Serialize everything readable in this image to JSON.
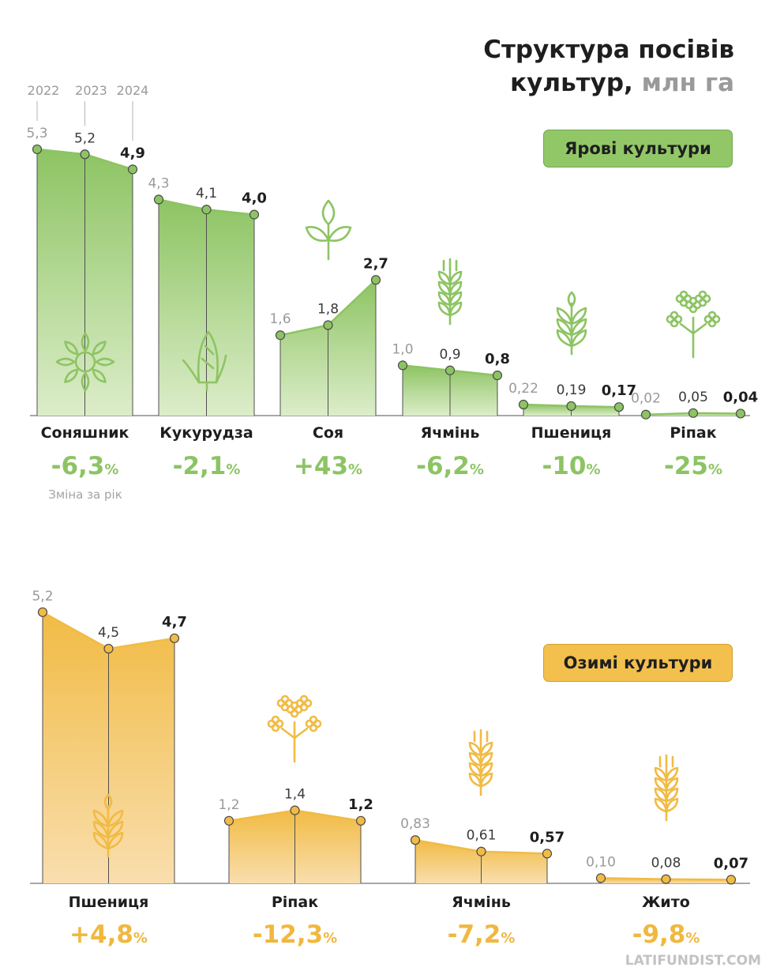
{
  "title": {
    "line1": "Структура посівів",
    "line2": "культур,",
    "unit": "млн га"
  },
  "badges": {
    "spring": "Ярові культури",
    "winter": "Озимі культури"
  },
  "years": [
    "2022",
    "2023",
    "2024"
  ],
  "change_note": "Зміна за рік",
  "watermark": "LATIFUNDIST.COM",
  "colors": {
    "spring": "#8dc463",
    "winter": "#f1bb44",
    "value_current": "#1e1e1e",
    "value_past": "#9a9a9a"
  },
  "chart_data": [
    {
      "type": "area",
      "group": "spring",
      "x": [
        "2022",
        "2023",
        "2024"
      ],
      "series": [
        {
          "name": "Соняшник",
          "values": [
            5.3,
            5.2,
            4.9
          ],
          "labels": [
            "5,3",
            "5,2",
            "4,9"
          ],
          "change": "-6,3",
          "icon": "sunflower-icon"
        },
        {
          "name": "Кукурудза",
          "values": [
            4.3,
            4.1,
            4.0
          ],
          "labels": [
            "4,3",
            "4,1",
            "4,0"
          ],
          "change": "-2,1",
          "icon": "corn-icon"
        },
        {
          "name": "Соя",
          "values": [
            1.6,
            1.8,
            2.7
          ],
          "labels": [
            "1,6",
            "1,8",
            "2,7"
          ],
          "change": "+43",
          "icon": "soy-icon"
        },
        {
          "name": "Ячмінь",
          "values": [
            1.0,
            0.9,
            0.8
          ],
          "labels": [
            "1,0",
            "0,9",
            "0,8"
          ],
          "change": "-6,2",
          "icon": "barley-icon"
        },
        {
          "name": "Пшениця",
          "values": [
            0.22,
            0.19,
            0.17
          ],
          "labels": [
            "0,22",
            "0,19",
            "0,17"
          ],
          "change": "-10",
          "icon": "wheat-icon"
        },
        {
          "name": "Ріпак",
          "values": [
            0.02,
            0.05,
            0.04
          ],
          "labels": [
            "0,02",
            "0,05",
            "0,04"
          ],
          "change": "-25",
          "icon": "rapeseed-icon"
        }
      ]
    },
    {
      "type": "area",
      "group": "winter",
      "x": [
        "2022",
        "2023",
        "2024"
      ],
      "series": [
        {
          "name": "Пшениця",
          "values": [
            5.2,
            4.5,
            4.7
          ],
          "labels": [
            "5,2",
            "4,5",
            "4,7"
          ],
          "change": "+4,8",
          "icon": "wheat-icon"
        },
        {
          "name": "Ріпак",
          "values": [
            1.2,
            1.4,
            1.2
          ],
          "labels": [
            "1,2",
            "1,4",
            "1,2"
          ],
          "change": "-12,3",
          "icon": "rapeseed-icon"
        },
        {
          "name": "Ячмінь",
          "values": [
            0.83,
            0.61,
            0.57
          ],
          "labels": [
            "0,83",
            "0,61",
            "0,57"
          ],
          "change": "-7,2",
          "icon": "barley-icon"
        },
        {
          "name": "Жито",
          "values": [
            0.1,
            0.08,
            0.07
          ],
          "labels": [
            "0,10",
            "0,08",
            "0,07"
          ],
          "change": "-9,8",
          "icon": "rye-icon"
        }
      ]
    }
  ]
}
